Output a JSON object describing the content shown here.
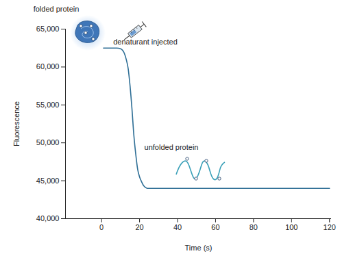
{
  "chart_data": {
    "type": "line",
    "x_label": "Time (s)",
    "y_label": "Fluorescence",
    "annotations": [
      "folded protein",
      "denaturant injected",
      "unfolded protein"
    ],
    "x": [
      1,
      8,
      10,
      12,
      13,
      14,
      15,
      16,
      17,
      18,
      19,
      20,
      21,
      22,
      23,
      24,
      120
    ],
    "values": [
      62500,
      62500,
      62400,
      61800,
      61000,
      59800,
      57500,
      54500,
      51000,
      48500,
      46500,
      45500,
      44900,
      44400,
      44150,
      44000,
      44000
    ],
    "color": "#2f6f96",
    "xlim": [
      -19,
      121
    ],
    "ylim": [
      40000,
      65000
    ],
    "xticks": [
      0,
      20,
      40,
      60,
      80,
      100,
      120
    ],
    "yticks": [
      {
        "value": 40000,
        "label": "40,000"
      },
      {
        "value": 45000,
        "label": "45,000"
      },
      {
        "value": 50000,
        "label": "50,000"
      },
      {
        "value": 55000,
        "label": "55,000"
      },
      {
        "value": 60000,
        "label": "60,000"
      },
      {
        "value": 65000,
        "label": "65,000"
      }
    ],
    "grid": false
  }
}
